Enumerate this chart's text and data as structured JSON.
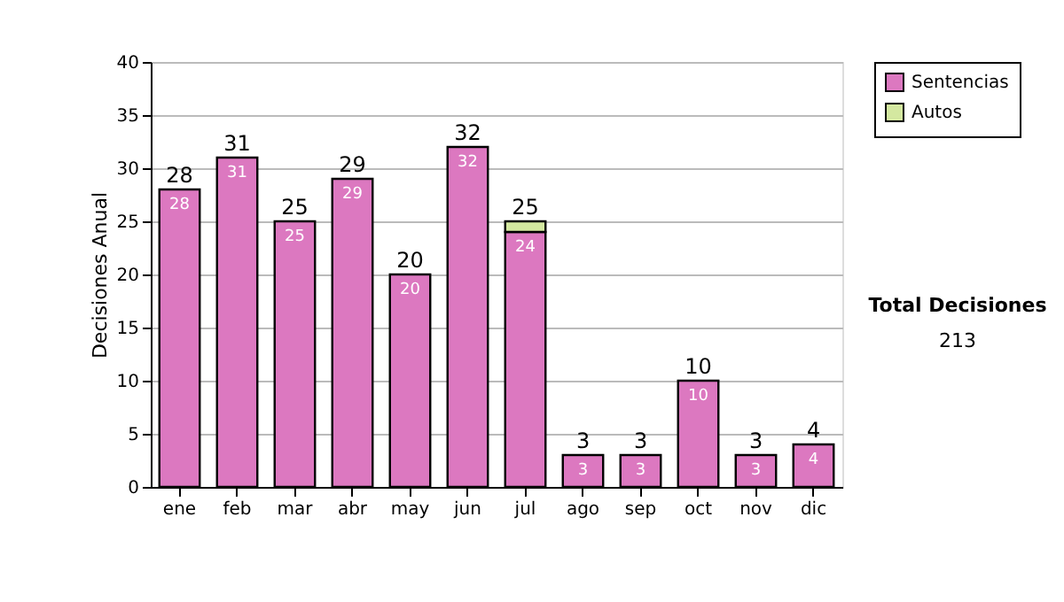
{
  "chart_data": {
    "type": "bar",
    "stacked": true,
    "ylabel": "Decisiones Anual",
    "categories": [
      "ene",
      "feb",
      "mar",
      "abr",
      "may",
      "jun",
      "jul",
      "ago",
      "sep",
      "oct",
      "nov",
      "dic"
    ],
    "series": [
      {
        "name": "Sentencias",
        "color": "#dc78c0",
        "values": [
          28,
          31,
          25,
          29,
          20,
          32,
          24,
          3,
          3,
          10,
          3,
          4
        ],
        "value_labels": [
          "28",
          "31",
          "25",
          "29",
          "20",
          "32",
          "24",
          "3",
          "3",
          "10",
          "3",
          "4"
        ]
      },
      {
        "name": "Autos",
        "color": "#d4e8a0",
        "values": [
          null,
          null,
          null,
          null,
          null,
          null,
          1,
          null,
          null,
          null,
          null,
          null
        ]
      }
    ],
    "totals": [
      "28",
      "31",
      "25",
      "29",
      "20",
      "32",
      "25",
      "3",
      "3",
      "10",
      "3",
      "4"
    ],
    "ylim": [
      0,
      40
    ],
    "yticks": [
      0,
      5,
      10,
      15,
      20,
      25,
      30,
      35,
      40
    ],
    "grid": "y",
    "legend": "right",
    "annotations": [
      "Total Decisiones",
      "213"
    ]
  }
}
